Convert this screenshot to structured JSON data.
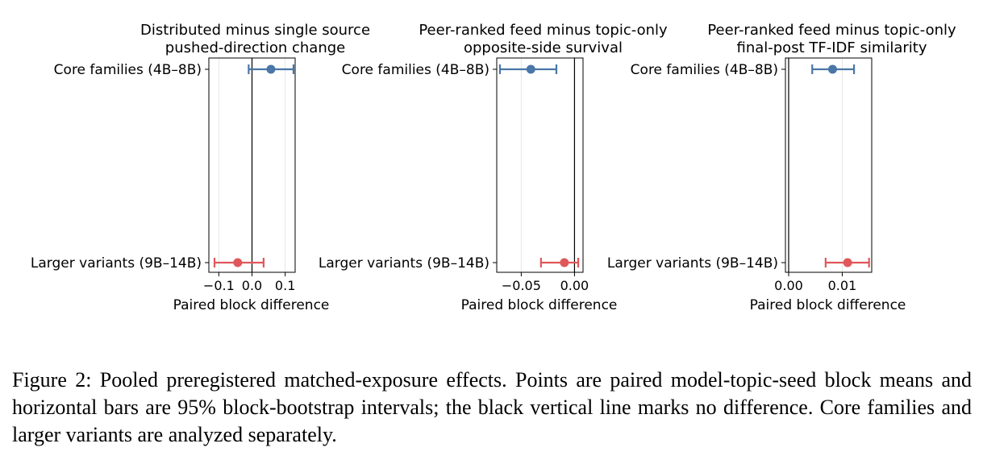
{
  "figure": {
    "caption": "Figure 2: Pooled preregistered matched-exposure effects. Points are paired model-topic-seed block means and horizontal bars are 95% block-bootstrap intervals; the black vertical line marks no difference. Core families and larger variants are analyzed separately."
  },
  "colors": {
    "core": "#4a76a8",
    "larger": "#e0575a",
    "zero_line": "#000000",
    "grid": "#e6e6e6"
  },
  "chart_data": [
    {
      "type": "scatter",
      "title": "Distributed minus single source\npushed-direction change",
      "xlabel": "Paired block difference",
      "xlim": [
        -0.13,
        0.13
      ],
      "xticks": [
        -0.1,
        0.0,
        0.1
      ],
      "xtick_labels": [
        "−0.1",
        "0.0",
        "0.1"
      ],
      "zero_line": 0,
      "grid": true,
      "categories": [
        "Core families (4B–8B)",
        "Larger variants (9B–14B)"
      ],
      "series": [
        {
          "category": "Core families (4B–8B)",
          "value": 0.057,
          "ci": [
            -0.01,
            0.125
          ],
          "color": "#4a76a8"
        },
        {
          "category": "Larger variants (9B–14B)",
          "value": -0.043,
          "ci": [
            -0.113,
            0.035
          ],
          "color": "#e0575a"
        }
      ]
    },
    {
      "type": "scatter",
      "title": "Peer-ranked feed minus topic-only\nopposite-side survival",
      "xlabel": "Paired block difference",
      "xlim": [
        -0.073,
        0.008
      ],
      "xticks": [
        -0.05,
        0.0
      ],
      "xtick_labels": [
        "−0.05",
        "0.00"
      ],
      "zero_line": 0,
      "grid": true,
      "categories": [
        "Core families (4B–8B)",
        "Larger variants (9B–14B)"
      ],
      "series": [
        {
          "category": "Core families (4B–8B)",
          "value": -0.041,
          "ci": [
            -0.07,
            -0.017
          ],
          "color": "#4a76a8"
        },
        {
          "category": "Larger variants (9B–14B)",
          "value": -0.0095,
          "ci": [
            -0.0315,
            0.0035
          ],
          "color": "#e0575a"
        }
      ]
    },
    {
      "type": "scatter",
      "title": "Peer-ranked feed minus topic-only\nfinal-post TF-IDF similarity",
      "xlabel": "Paired block difference",
      "xlim": [
        -0.0006,
        0.0155
      ],
      "xticks": [
        0.0,
        0.01
      ],
      "xtick_labels": [
        "0.00",
        "0.01"
      ],
      "zero_line": 0,
      "grid": true,
      "categories": [
        "Core families (4B–8B)",
        "Larger variants (9B–14B)"
      ],
      "series": [
        {
          "category": "Core families (4B–8B)",
          "value": 0.0082,
          "ci": [
            0.0044,
            0.0122
          ],
          "color": "#4a76a8"
        },
        {
          "category": "Larger variants (9B–14B)",
          "value": 0.011,
          "ci": [
            0.0069,
            0.015
          ],
          "color": "#e0575a"
        }
      ]
    }
  ]
}
